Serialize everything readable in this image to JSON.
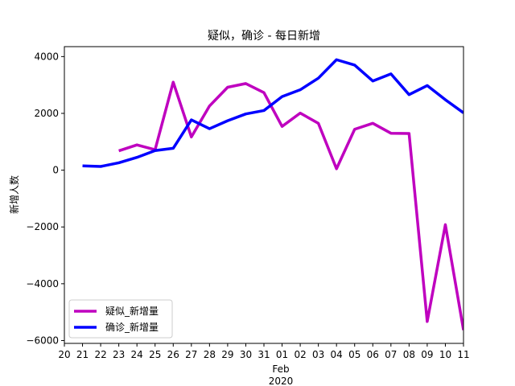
{
  "chart_data": {
    "type": "line",
    "title": "疑似，确诊 - 每日新增",
    "xlabel": "Feb\n2020",
    "xlabel_month": "Feb",
    "xlabel_year": "2020",
    "ylabel": "新增人数",
    "ylim": [
      -6100,
      4350
    ],
    "yticks": [
      4000,
      2000,
      0,
      -2000,
      -4000,
      -6000
    ],
    "ytick_labels": [
      "4000",
      "2000",
      "0",
      "−2000",
      "−4000",
      "−6000"
    ],
    "xticks": [
      "2020-01-20",
      "2020-01-21",
      "2020-01-22",
      "2020-01-23",
      "2020-01-24",
      "2020-01-25",
      "2020-01-26",
      "2020-01-27",
      "2020-01-28",
      "2020-01-29",
      "2020-01-30",
      "2020-01-31",
      "2020-02-01",
      "2020-02-02",
      "2020-02-03",
      "2020-02-04",
      "2020-02-05",
      "2020-02-06",
      "2020-02-07",
      "2020-02-08",
      "2020-02-09",
      "2020-02-10",
      "2020-02-11"
    ],
    "xtick_labels": [
      "20",
      "21",
      "22",
      "23",
      "24",
      "25",
      "26",
      "27",
      "28",
      "29",
      "30",
      "31",
      "01",
      "02",
      "03",
      "04",
      "05",
      "06",
      "07",
      "08",
      "09",
      "10",
      "11"
    ],
    "xlim": [
      "2020-01-20",
      "2020-02-11"
    ],
    "legend_position": "lower left",
    "series": [
      {
        "name": "疑似_新增量",
        "color": "#bf00bf",
        "x": [
          "2020-01-23",
          "2020-01-24",
          "2020-01-25",
          "2020-01-26",
          "2020-01-27",
          "2020-01-28",
          "2020-01-29",
          "2020-01-30",
          "2020-01-31",
          "2020-02-01",
          "2020-02-02",
          "2020-02-03",
          "2020-02-04",
          "2020-02-05",
          "2020-02-06",
          "2020-02-07",
          "2020-02-08",
          "2020-02-09",
          "2020-02-10",
          "2020-02-11"
        ],
        "values": [
          680,
          890,
          720,
          3100,
          1170,
          2260,
          2920,
          3050,
          2730,
          1540,
          2010,
          1650,
          50,
          1440,
          1650,
          1300,
          1290,
          -5330,
          -1920,
          -5630
        ]
      },
      {
        "name": "确诊_新增量",
        "color": "#0000ff",
        "x": [
          "2020-01-21",
          "2020-01-22",
          "2020-01-23",
          "2020-01-24",
          "2020-01-25",
          "2020-01-26",
          "2020-01-27",
          "2020-01-28",
          "2020-01-29",
          "2020-01-30",
          "2020-01-31",
          "2020-02-01",
          "2020-02-02",
          "2020-02-03",
          "2020-02-04",
          "2020-02-05",
          "2020-02-06",
          "2020-02-07",
          "2020-02-08",
          "2020-02-09",
          "2020-02-10",
          "2020-02-11"
        ],
        "values": [
          150,
          130,
          260,
          450,
          690,
          770,
          1770,
          1460,
          1740,
          1980,
          2100,
          2590,
          2830,
          3240,
          3890,
          3700,
          3140,
          3390,
          2660,
          2980,
          2480,
          2020
        ]
      }
    ]
  }
}
